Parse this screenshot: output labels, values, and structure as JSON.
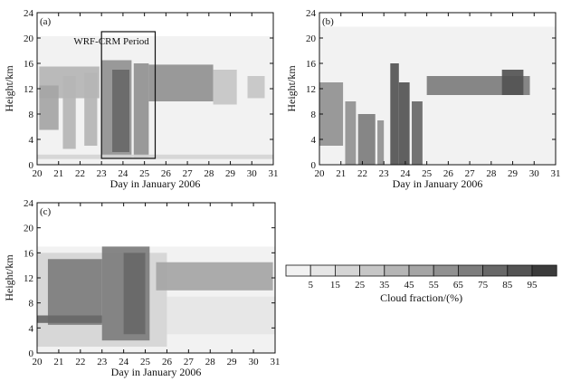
{
  "chart_data": [
    {
      "type": "heatmap",
      "panel": "(a)",
      "annotation": "WRF-CRM Period",
      "highlight_period_days": [
        23.0,
        25.5
      ],
      "highlight_height_km": [
        1,
        21
      ],
      "xlabel": "Day in January 2006",
      "ylabel": "Height/km",
      "xlim": [
        20,
        31
      ],
      "ylim": [
        0,
        24
      ],
      "x_ticks": [
        "20",
        "21",
        "22",
        "23",
        "24",
        "25",
        "26",
        "27",
        "28",
        "29",
        "30",
        "31"
      ],
      "y_ticks": [
        "0",
        "4",
        "8",
        "12",
        "16",
        "20",
        "24"
      ],
      "data_top_km": 20.3,
      "cells": [
        {
          "x": [
            20.1,
            22.9
          ],
          "y": [
            10.5,
            15.5
          ],
          "level": 4
        },
        {
          "x": [
            20.1,
            21.0
          ],
          "y": [
            5.5,
            12.5
          ],
          "level": 5
        },
        {
          "x": [
            21.2,
            21.8
          ],
          "y": [
            2.5,
            14.0
          ],
          "level": 4
        },
        {
          "x": [
            22.2,
            22.8
          ],
          "y": [
            3.0,
            14.5
          ],
          "level": 4
        },
        {
          "x": [
            23.0,
            24.4
          ],
          "y": [
            1.0,
            16.5
          ],
          "level": 6
        },
        {
          "x": [
            23.5,
            24.3
          ],
          "y": [
            2.0,
            15.0
          ],
          "level": 8
        },
        {
          "x": [
            24.5,
            25.2
          ],
          "y": [
            1.0,
            16.0
          ],
          "level": 6
        },
        {
          "x": [
            25.2,
            28.2
          ],
          "y": [
            10.0,
            15.8
          ],
          "level": 6
        },
        {
          "x": [
            28.2,
            29.3
          ],
          "y": [
            9.5,
            15.0
          ],
          "level": 3
        },
        {
          "x": [
            29.8,
            30.6
          ],
          "y": [
            10.5,
            14.0
          ],
          "level": 3
        },
        {
          "x": [
            20.0,
            31.0
          ],
          "y": [
            0.9,
            1.6
          ],
          "level": 2
        }
      ]
    },
    {
      "type": "heatmap",
      "panel": "(b)",
      "xlabel": "Day in January 2006",
      "ylabel": "Height/km",
      "xlim": [
        20,
        31
      ],
      "ylim": [
        0,
        24
      ],
      "x_ticks": [
        "20",
        "21",
        "22",
        "23",
        "24",
        "25",
        "26",
        "27",
        "28",
        "29",
        "30",
        "31"
      ],
      "y_ticks": [
        "0",
        "4",
        "8",
        "12",
        "16",
        "20",
        "24"
      ],
      "data_top_km": 21.8,
      "cells": [
        {
          "x": [
            20.0,
            21.1
          ],
          "y": [
            3.0,
            13.0
          ],
          "level": 6
        },
        {
          "x": [
            21.2,
            21.7
          ],
          "y": [
            0.0,
            10.0
          ],
          "level": 6
        },
        {
          "x": [
            21.8,
            22.6
          ],
          "y": [
            0.0,
            8.0
          ],
          "level": 7
        },
        {
          "x": [
            22.7,
            23.0
          ],
          "y": [
            0.0,
            7.0
          ],
          "level": 6
        },
        {
          "x": [
            23.3,
            23.7
          ],
          "y": [
            0.0,
            16.0
          ],
          "level": 9
        },
        {
          "x": [
            23.7,
            24.2
          ],
          "y": [
            0.0,
            13.0
          ],
          "level": 9
        },
        {
          "x": [
            24.3,
            24.8
          ],
          "y": [
            0.0,
            10.0
          ],
          "level": 8
        },
        {
          "x": [
            25.0,
            29.8
          ],
          "y": [
            11.0,
            14.0
          ],
          "level": 7
        },
        {
          "x": [
            28.5,
            29.5
          ],
          "y": [
            11.0,
            15.0
          ],
          "level": 9
        }
      ]
    },
    {
      "type": "heatmap",
      "panel": "(c)",
      "xlabel": "Day in January 2006",
      "ylabel": "Height/km",
      "xlim": [
        20,
        31
      ],
      "ylim": [
        0,
        24
      ],
      "x_ticks": [
        "20",
        "21",
        "22",
        "23",
        "24",
        "25",
        "26",
        "27",
        "28",
        "29",
        "30",
        "31"
      ],
      "y_ticks": [
        "0",
        "4",
        "8",
        "12",
        "16",
        "20",
        "24"
      ],
      "data_top_km": 17.0,
      "cells": [
        {
          "x": [
            20.0,
            26.0
          ],
          "y": [
            1.0,
            16.0
          ],
          "level": 2
        },
        {
          "x": [
            20.5,
            23.0
          ],
          "y": [
            4.5,
            15.0
          ],
          "level": 7
        },
        {
          "x": [
            23.0,
            25.2
          ],
          "y": [
            2.0,
            17.0
          ],
          "level": 7
        },
        {
          "x": [
            24.0,
            25.0
          ],
          "y": [
            3.0,
            16.0
          ],
          "level": 8
        },
        {
          "x": [
            25.5,
            30.9
          ],
          "y": [
            10.0,
            14.5
          ],
          "level": 5
        },
        {
          "x": [
            26.0,
            31.0
          ],
          "y": [
            3.0,
            9.0
          ],
          "level": 1
        },
        {
          "x": [
            20.0,
            23.0
          ],
          "y": [
            4.8,
            6.0
          ],
          "level": 8
        }
      ]
    }
  ],
  "colorbar": {
    "label": "Cloud fraction/(%)",
    "tick_labels": [
      "5",
      "15",
      "25",
      "35",
      "45",
      "55",
      "65",
      "75",
      "85",
      "95"
    ],
    "fills": [
      "#f2f2f2",
      "#e6e6e6",
      "#d5d5d5",
      "#c6c6c6",
      "#b5b5b5",
      "#a5a5a5",
      "#919191",
      "#7d7d7d",
      "#686868",
      "#545454",
      "#3b3b3b"
    ]
  }
}
